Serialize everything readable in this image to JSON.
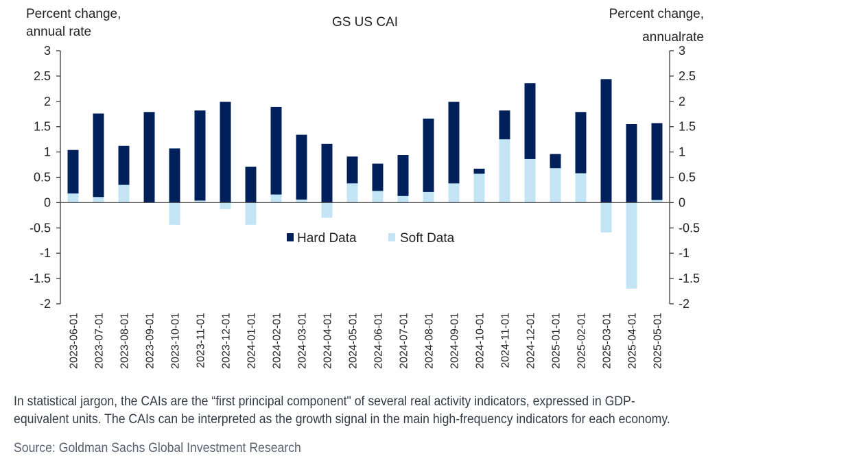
{
  "chart_data": {
    "type": "bar",
    "stacked": true,
    "title": "GS US CAI",
    "ylabel_left": [
      "Percent change,",
      "annual rate"
    ],
    "ylabel_right": [
      "Percent change,",
      "annualrate"
    ],
    "xlabel": "",
    "ylim": [
      -2,
      3
    ],
    "yticks": [
      3,
      2.5,
      2,
      1.5,
      1,
      0.5,
      0,
      -0.5,
      -1,
      -1.5,
      -2
    ],
    "ytick_labels": [
      "3",
      "2.5",
      "2",
      "1.5",
      "1",
      "0.5",
      "0",
      "-0.5",
      "-1",
      "-1.5",
      "-2"
    ],
    "grid": false,
    "legend_position": "center",
    "categories": [
      "2023-06-01",
      "2023-07-01",
      "2023-08-01",
      "2023-09-01",
      "2023-10-01",
      "2023-11-01",
      "2023-12-01",
      "2024-01-01",
      "2024-02-01",
      "2024-03-01",
      "2024-04-01",
      "2024-05-01",
      "2024-06-01",
      "2024-07-01",
      "2024-08-01",
      "2024-09-01",
      "2024-10-01",
      "2024-11-01",
      "2024-12-01",
      "2025-01-01",
      "2025-02-01",
      "2025-03-01",
      "2025-04-01",
      "2025-05-01"
    ],
    "series": [
      {
        "name": "Hard Data",
        "color": "#00205b",
        "values": [
          0.86,
          1.65,
          0.77,
          1.79,
          1.07,
          1.78,
          1.99,
          0.71,
          1.73,
          1.28,
          1.16,
          0.53,
          0.54,
          0.81,
          1.45,
          1.61,
          0.1,
          0.57,
          1.5,
          0.28,
          1.21,
          2.44,
          1.55,
          1.52
        ]
      },
      {
        "name": "Soft Data",
        "color": "#c3e4f5",
        "values": [
          0.18,
          0.11,
          0.35,
          0.0,
          -0.44,
          0.04,
          -0.13,
          -0.44,
          0.16,
          0.06,
          -0.3,
          0.38,
          0.23,
          0.13,
          0.21,
          0.38,
          0.57,
          1.25,
          0.86,
          0.68,
          0.58,
          -0.59,
          -1.7,
          0.05
        ]
      }
    ]
  },
  "footnote": {
    "line1": "In statistical jargon, the CAIs are the “first principal component\" of several real activity indicators, expressed in GDP-",
    "line2": "equivalent units. The CAIs can be interpreted as the growth signal in the main high-frequency indicators for each economy.",
    "source": "Source: Goldman Sachs Global Investment Research"
  }
}
